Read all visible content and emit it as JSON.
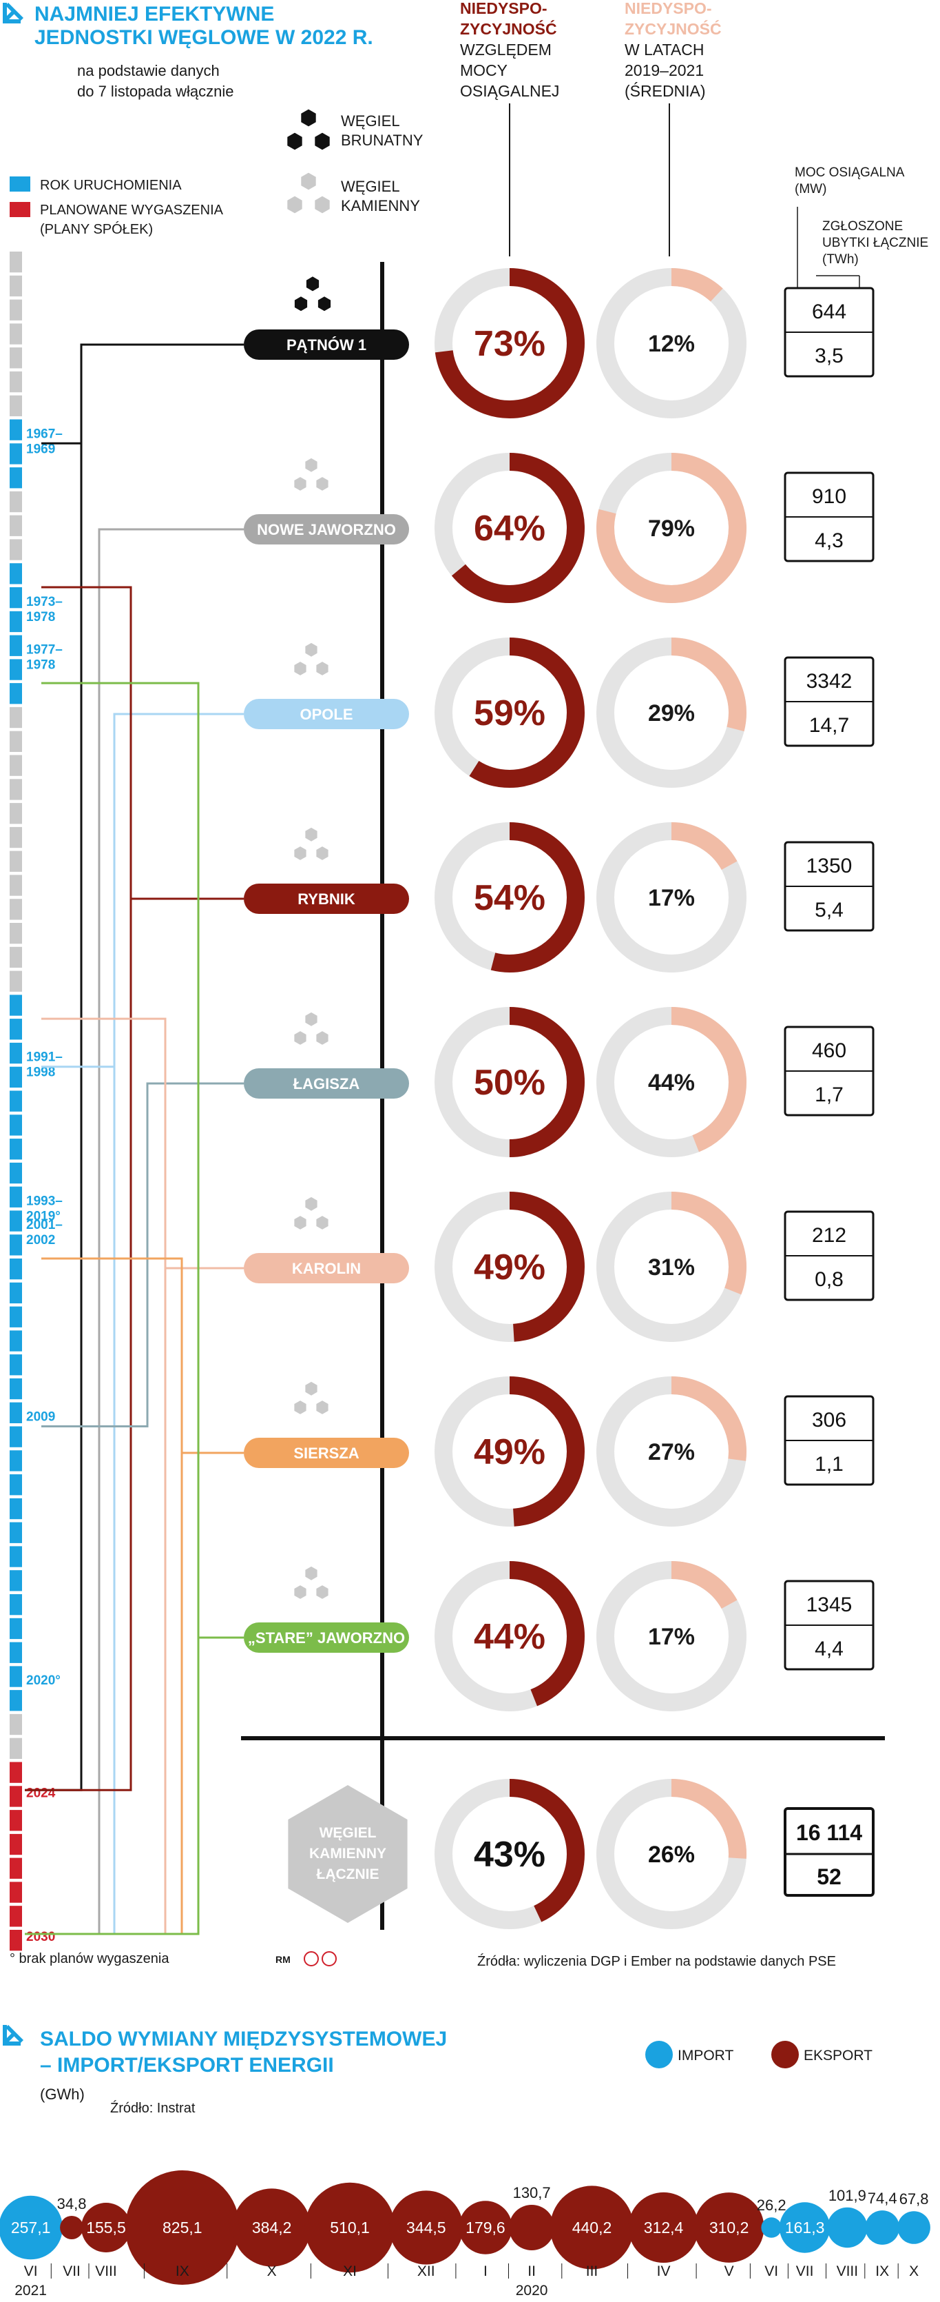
{
  "section1": {
    "title_line1": "NAJMNIEJ EFEKTYWNE",
    "title_line2": "JEDNOSTKI WĘGLOWE W 2022 R.",
    "subtitle_line1": "na podstawie danych",
    "subtitle_line2": "do 7 listopada włącznie"
  },
  "legend": {
    "lignite": [
      "WĘGIEL",
      "BRUNATNY"
    ],
    "hard_coal": [
      "WĘGIEL",
      "KAMIENNY"
    ],
    "start_label": "ROK URUCHOMIENIA",
    "shutdown_label": [
      "PLANOWANE WYGASZENIA",
      "(PLANY SPÓŁEK)"
    ]
  },
  "column_headers": {
    "col1": [
      "NIEDYSPO-",
      "ZYCYJNOŚĆ",
      "WZGLĘDEM",
      "MOCY",
      "OSIĄGALNEJ"
    ],
    "col2": [
      "NIEDYSPO-",
      "ZYCYJNOŚĆ",
      "W LATACH",
      "2019–2021",
      "(ŚREDNIA)"
    ],
    "capacity_label": [
      "MOC OSIĄGALNA",
      "(MW)"
    ],
    "loss_label": [
      "ZGŁOSZONE",
      "UBYTKI ŁĄCZNIE",
      "(TWh)"
    ]
  },
  "timeline": {
    "start_labels": [
      {
        "text": "1967–\n1969",
        "year": 1968
      },
      {
        "text": "1973–\n1978",
        "year": 1975
      },
      {
        "text": "1977–\n1978",
        "year": 1977
      },
      {
        "text": "1991–\n1998",
        "year": 1994
      },
      {
        "text": "1993–\n2019°",
        "year": 2000
      },
      {
        "text": "2001–\n2002",
        "year": 2001
      },
      {
        "text": "2009",
        "year": 2009
      },
      {
        "text": "2020°",
        "year": 2020
      }
    ],
    "end_labels": [
      {
        "text": "2024",
        "year": 2024
      },
      {
        "text": "2030",
        "year": 2030
      }
    ]
  },
  "chart_data": [
    {
      "type": "donut",
      "title": "Najmniej efektywne jednostki węglowe w 2022 r.",
      "units": [
        {
          "name": "PĄTNÓW 1",
          "fuel": "lignite",
          "color": "#111111",
          "unavail_2022": 73,
          "unavail_2019_2021": 12,
          "capacity_mw": "644",
          "losses_twh": "3,5",
          "start": "1967–1969",
          "shutdown": "2024"
        },
        {
          "name": "NOWE JAWORZNO",
          "fuel": "hard",
          "color": "#a8a8a8",
          "unavail_2022": 64,
          "unavail_2019_2021": 79,
          "capacity_mw": "910",
          "losses_twh": "4,3",
          "start": "1973–1978",
          "shutdown": "2030"
        },
        {
          "name": "OPOLE",
          "fuel": "hard",
          "color": "#a9d6f3",
          "unavail_2022": 59,
          "unavail_2019_2021": 29,
          "capacity_mw": "3342",
          "losses_twh": "14,7",
          "start": "1993–2019°",
          "shutdown": "2030"
        },
        {
          "name": "RYBNIK",
          "fuel": "hard",
          "color": "#8b1a10",
          "unavail_2022": 54,
          "unavail_2019_2021": 17,
          "capacity_mw": "1350",
          "losses_twh": "5,4",
          "start": "1973–1978",
          "shutdown": "2024"
        },
        {
          "name": "ŁAGISZA",
          "fuel": "hard",
          "color": "#8ca9b1",
          "unavail_2022": 50,
          "unavail_2019_2021": 44,
          "capacity_mw": "460",
          "losses_twh": "1,7",
          "start": "2009",
          "shutdown": ""
        },
        {
          "name": "KAROLIN",
          "fuel": "hard",
          "color": "#f1bca6",
          "unavail_2022": 49,
          "unavail_2019_2021": 31,
          "capacity_mw": "212",
          "losses_twh": "0,8",
          "start": "1991–1998",
          "shutdown": "2030"
        },
        {
          "name": "SIERSZA",
          "fuel": "hard",
          "color": "#f2a45f",
          "unavail_2022": 49,
          "unavail_2019_2021": 27,
          "capacity_mw": "306",
          "losses_twh": "1,1",
          "start": "2001–2002",
          "shutdown": "2030"
        },
        {
          "name": "„STARE” JAWORZNO",
          "fuel": "hard",
          "color": "#7cbc4a",
          "unavail_2022": 44,
          "unavail_2019_2021": 17,
          "capacity_mw": "1345",
          "losses_twh": "4,4",
          "start": "1977–1978",
          "shutdown": "2030"
        }
      ],
      "total": {
        "name": [
          "WĘGIEL",
          "KAMIENNY",
          "ŁĄCZNIE"
        ],
        "unavail_2022": 43,
        "unavail_2019_2021": 26,
        "capacity_mw": "16 114",
        "losses_twh": "52"
      }
    },
    {
      "type": "bubble",
      "title": "SALDO WYMIANY MIĘDZYSYSTEMOWEJ – IMPORT/EKSPORT ENERGII",
      "unit": "(GWh)",
      "series": [
        {
          "name": "IMPORT",
          "color": "#1aa2e0"
        },
        {
          "name": "EKSPORT",
          "color": "#8b1a10"
        }
      ],
      "points": [
        {
          "month": "VI",
          "value": 257.1,
          "label": "257,1",
          "type": "import"
        },
        {
          "month": "VII",
          "value": 34.8,
          "label": "34,8",
          "type": "export"
        },
        {
          "month": "VIII",
          "value": 155.5,
          "label": "155,5",
          "type": "export"
        },
        {
          "month": "IX",
          "value": 825.1,
          "label": "825,1",
          "type": "export"
        },
        {
          "month": "X",
          "value": 384.2,
          "label": "384,2",
          "type": "export"
        },
        {
          "month": "XI",
          "value": 510.1,
          "label": "510,1",
          "type": "export"
        },
        {
          "month": "XII",
          "value": 344.5,
          "label": "344,5",
          "type": "export"
        },
        {
          "month": "I",
          "value": 179.6,
          "label": "179,6",
          "type": "export"
        },
        {
          "month": "II",
          "value": 130.7,
          "label": "130,7",
          "type": "export"
        },
        {
          "month": "III",
          "value": 440.2,
          "label": "440,2",
          "type": "export"
        },
        {
          "month": "IV",
          "value": 312.4,
          "label": "312,4",
          "type": "export"
        },
        {
          "month": "V",
          "value": 310.2,
          "label": "310,2",
          "type": "export"
        },
        {
          "month": "VI",
          "value": 26.2,
          "label": "26,2",
          "type": "import"
        },
        {
          "month": "VII",
          "value": 161.3,
          "label": "161,3",
          "type": "import"
        },
        {
          "month": "VIII",
          "value": 101.9,
          "label": "101,9",
          "type": "import"
        },
        {
          "month": "IX",
          "value": 74.4,
          "label": "74,4",
          "type": "import"
        },
        {
          "month": "X",
          "value": 67.8,
          "label": "67,8",
          "type": "import"
        }
      ],
      "years": [
        {
          "text": "2021",
          "index": 0
        },
        {
          "text": "2020",
          "index": 8
        }
      ]
    }
  ],
  "footnote": "° brak planów wygaszenia",
  "author": "RM",
  "source1": "Źródła: wyliczenia DGP i Ember na podstawie danych PSE",
  "section2": {
    "title_line1": "SALDO WYMIANY MIĘDZYSYSTEMOWEJ",
    "title_line2": "– IMPORT/EKSPORT ENERGII",
    "unit": "(GWh)",
    "source": "Źródło: Instrat",
    "legend_import": "IMPORT",
    "legend_export": "EKSPORT"
  },
  "colors": {
    "blue": "#1aa2e0",
    "red": "#8b1a10",
    "dark_red_text": "#8b1a10",
    "light_salmon": "#f1bca6",
    "ring_grey": "#e4e4e4",
    "checker": "#c9c9c9",
    "shutdown_red": "#d0202b"
  }
}
